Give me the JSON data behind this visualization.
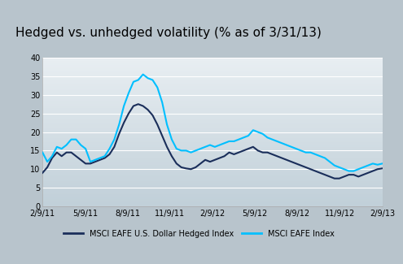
{
  "title": "Hedged vs. unhedged volatility (% as of 3/31/13)",
  "title_fontsize": 11,
  "title_bg_color": "#b8c4cc",
  "plot_bg_color_top": "#e8eef2",
  "plot_bg_color_bottom": "#c0cfd8",
  "ylim": [
    0,
    40
  ],
  "yticks": [
    0,
    5,
    10,
    15,
    20,
    25,
    30,
    35,
    40
  ],
  "xtick_labels": [
    "2/9/11",
    "5/9/11",
    "8/9/11",
    "11/9/11",
    "2/9/12",
    "5/9/12",
    "8/9/12",
    "11/9/12",
    "2/9/13"
  ],
  "hedged_color": "#1a2e5a",
  "unhedged_color": "#00bfff",
  "legend_hedged": "MSCI EAFE U.S. Dollar Hedged Index",
  "legend_unhedged": "MSCI EAFE Index",
  "hedged_data": [
    9.0,
    10.5,
    13.0,
    14.5,
    13.5,
    14.5,
    14.5,
    13.5,
    12.5,
    11.5,
    11.5,
    12.0,
    12.5,
    13.0,
    14.0,
    16.0,
    19.5,
    22.5,
    25.0,
    27.0,
    27.5,
    27.0,
    26.0,
    24.5,
    22.0,
    19.0,
    16.0,
    13.5,
    11.5,
    10.5,
    10.2,
    10.0,
    10.5,
    11.5,
    12.5,
    12.0,
    12.5,
    13.0,
    13.5,
    14.5,
    14.0,
    14.5,
    15.0,
    15.5,
    16.0,
    15.0,
    14.5,
    14.5,
    14.0,
    13.5,
    13.0,
    12.5,
    12.0,
    11.5,
    11.0,
    10.5,
    10.0,
    9.5,
    9.0,
    8.5,
    8.0,
    7.5,
    7.5,
    8.0,
    8.5,
    8.5,
    8.0,
    8.5,
    9.0,
    9.5,
    10.0,
    10.2
  ],
  "unhedged_data": [
    14.5,
    12.0,
    13.5,
    16.0,
    15.5,
    16.5,
    18.0,
    18.0,
    16.5,
    15.5,
    12.0,
    12.5,
    13.0,
    13.5,
    15.5,
    18.0,
    22.0,
    27.0,
    30.5,
    33.5,
    34.0,
    35.5,
    34.5,
    34.0,
    32.0,
    28.0,
    22.0,
    18.0,
    15.5,
    15.0,
    15.0,
    14.5,
    15.0,
    15.5,
    16.0,
    16.5,
    16.0,
    16.5,
    17.0,
    17.5,
    17.5,
    18.0,
    18.5,
    19.0,
    20.5,
    20.0,
    19.5,
    18.5,
    18.0,
    17.5,
    17.0,
    16.5,
    16.0,
    15.5,
    15.0,
    14.5,
    14.5,
    14.0,
    13.5,
    13.0,
    12.0,
    11.0,
    10.5,
    10.0,
    9.5,
    9.5,
    10.0,
    10.5,
    11.0,
    11.5,
    11.2,
    11.5
  ]
}
